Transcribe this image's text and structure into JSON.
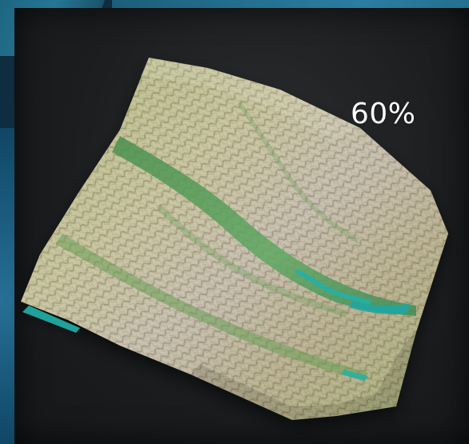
{
  "overlay": {
    "percent_label": "60%"
  },
  "colors": {
    "panel": "#1b1d1f",
    "terrain_high": "#d9d2c2",
    "terrain_mid": "#a9b880",
    "terrain_green": "#4f9e5a",
    "water": "#20b2aa",
    "frame_teal": "#2a89a9"
  },
  "scene": {
    "subject": "3d-terrain-elevation-model"
  }
}
